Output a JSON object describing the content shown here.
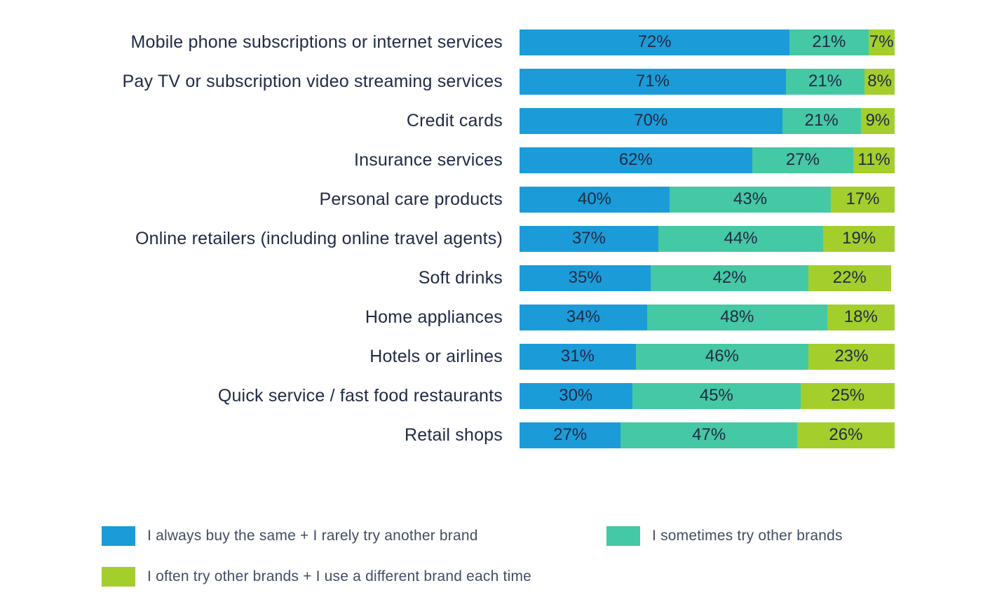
{
  "chart_data": {
    "type": "bar",
    "orientation": "horizontal",
    "stacked": true,
    "title": "",
    "xlabel": "",
    "ylabel": "",
    "unit": "%",
    "xlim": [
      0,
      100
    ],
    "grid": false,
    "legend_position": "bottom",
    "value_label_format": "{value}%",
    "categories": [
      "Mobile phone subscriptions or internet services",
      "Pay TV or subscription video streaming services",
      "Credit cards",
      "Insurance services",
      "Personal care products",
      "Online retailers (including online travel agents)",
      "Soft drinks",
      "Home appliances",
      "Hotels or airlines",
      "Quick service / fast food restaurants",
      "Retail shops"
    ],
    "series": [
      {
        "name": "I always buy the same + I rarely try another brand",
        "color": "#1B9CD9",
        "values": [
          72,
          71,
          70,
          62,
          40,
          37,
          35,
          34,
          31,
          30,
          27
        ]
      },
      {
        "name": "I sometimes try other brands",
        "color": "#45C8A4",
        "values": [
          21,
          21,
          21,
          27,
          43,
          44,
          42,
          48,
          46,
          45,
          47
        ]
      },
      {
        "name": "I often try other brands + I use a different brand each time",
        "color": "#A4CE2B",
        "values": [
          7,
          8,
          9,
          11,
          17,
          19,
          22,
          18,
          23,
          25,
          26
        ]
      }
    ]
  },
  "colors": {
    "bar_value_text": "#212B46",
    "category_text": "#212B46",
    "legend_text": "#414E63",
    "background": "#FFFFFF"
  }
}
